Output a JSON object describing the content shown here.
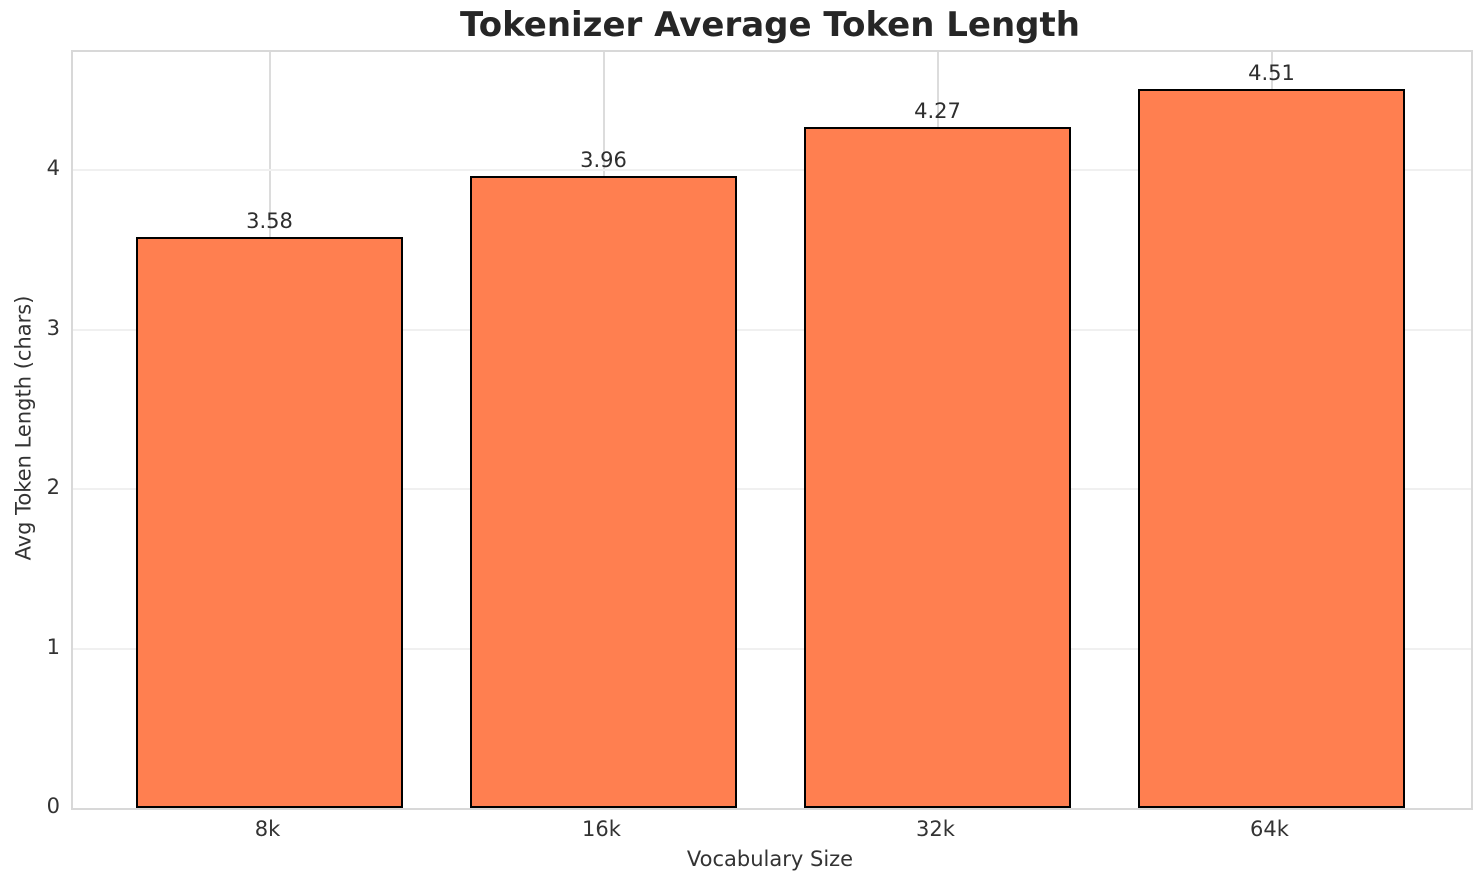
{
  "chart_data": {
    "type": "bar",
    "title": "Tokenizer Average Token Length",
    "xlabel": "Vocabulary Size",
    "ylabel": "Avg Token Length (chars)",
    "categories": [
      "8k",
      "16k",
      "32k",
      "64k"
    ],
    "values": [
      3.58,
      3.96,
      4.27,
      4.51
    ],
    "value_labels": [
      "3.58",
      "3.96",
      "4.27",
      "4.51"
    ],
    "yticks": [
      0,
      1,
      2,
      3,
      4
    ],
    "ylim": [
      0,
      4.74
    ],
    "grid": true,
    "legend": false,
    "colors": {
      "bar_fill": "#FF7F50",
      "bar_edge": "#000000",
      "grid_horizontal": "#F0F0F0",
      "grid_vertical": "#DCDCDC",
      "spine": "#D8D8D8",
      "title_text": "#262626",
      "tick_text": "#333333",
      "value_text": "#2E2E2E",
      "background": "#FFFFFF"
    }
  }
}
